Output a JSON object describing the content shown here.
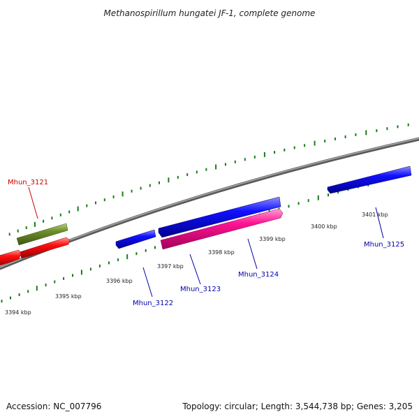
{
  "title": "Methanospirillum hungatei JF-1, complete genome",
  "footer": {
    "accession": "Accession: NC_007796",
    "summary": "Topology: circular; Length: 3,544,738 bp; Genes: 3,205"
  },
  "colors": {
    "backbone": "#808080",
    "tick": "#1a7a1a",
    "label_red": "#cc0000",
    "label_blue": "#0000aa"
  },
  "tick_labels": [
    "3394 kbp",
    "3395 kbp",
    "3396 kbp",
    "3397 kbp",
    "3398 kbp",
    "3399 kbp",
    "3400 kbp",
    "3401 kbp"
  ],
  "genes": [
    {
      "label": "Mhun_3121",
      "color": "#cc0000"
    },
    {
      "label": "Mhun_3122",
      "color": "#0000aa"
    },
    {
      "label": "Mhun_3123",
      "color": "#0000aa"
    },
    {
      "label": "Mhun_3124",
      "color": "#0000aa"
    },
    {
      "label": "Mhun_3125",
      "color": "#0000aa"
    }
  ]
}
